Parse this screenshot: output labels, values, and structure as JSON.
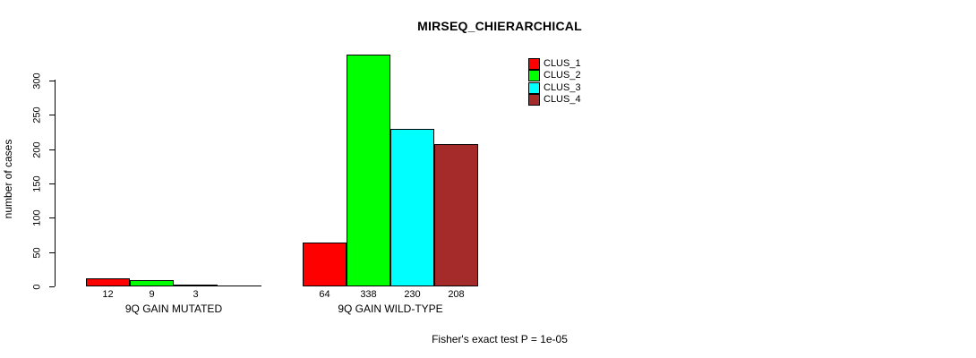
{
  "chart_data": {
    "type": "bar",
    "title": "MIRSEQ_CHIERARCHICAL",
    "xlabel": "",
    "ylabel": "number of cases",
    "annotation": "Fisher's exact test P = 1e-05",
    "ylim": [
      0,
      300
    ],
    "yticks": [
      0,
      50,
      100,
      150,
      200,
      250,
      300
    ],
    "grid": false,
    "legend_position": "top-right",
    "series": [
      {
        "name": "CLUS_1",
        "color": "#FF0000"
      },
      {
        "name": "CLUS_2",
        "color": "#00FF00"
      },
      {
        "name": "CLUS_3",
        "color": "#00FFFF"
      },
      {
        "name": "CLUS_4",
        "color": "#A52A2A"
      }
    ],
    "categories": [
      "9Q GAIN MUTATED",
      "9Q GAIN WILD-TYPE"
    ],
    "groups": [
      {
        "label": "9Q GAIN MUTATED",
        "values": [
          12,
          9,
          3,
          0
        ]
      },
      {
        "label": "9Q GAIN WILD-TYPE",
        "values": [
          64,
          338,
          230,
          208
        ]
      }
    ],
    "bar_value_labels_shown": true
  }
}
